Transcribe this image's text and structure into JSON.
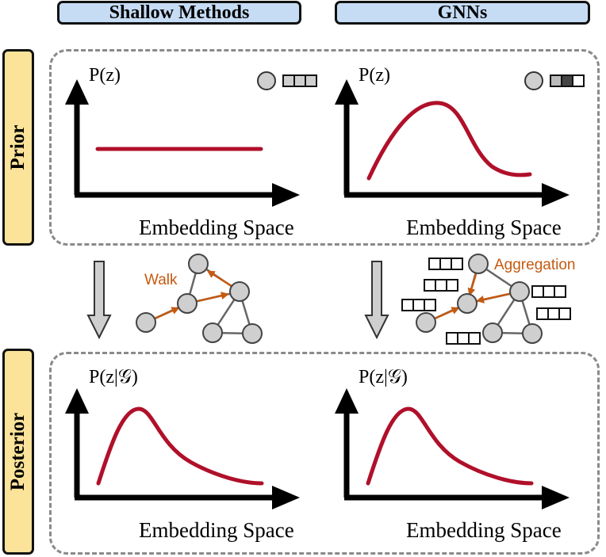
{
  "headers": {
    "shallow": "Shallow Methods",
    "gnns": "GNNs"
  },
  "rows": {
    "prior": "Prior",
    "posterior": "Posterior"
  },
  "labels": {
    "prior_y": "P(z)",
    "posterior_y": "P(z|𝒢)",
    "x_axis": "Embedding Space",
    "walk": "Walk",
    "aggregation": "Aggregation"
  },
  "colors": {
    "curve": "#b0102a",
    "node_fill": "#cfcfcf",
    "edge": "#666666",
    "arrow_annotation": "#c55a11",
    "header_bg": "#c6dcf5",
    "row_label_bg": "#fbe39a",
    "panel_border": "#8a8a8a"
  }
}
